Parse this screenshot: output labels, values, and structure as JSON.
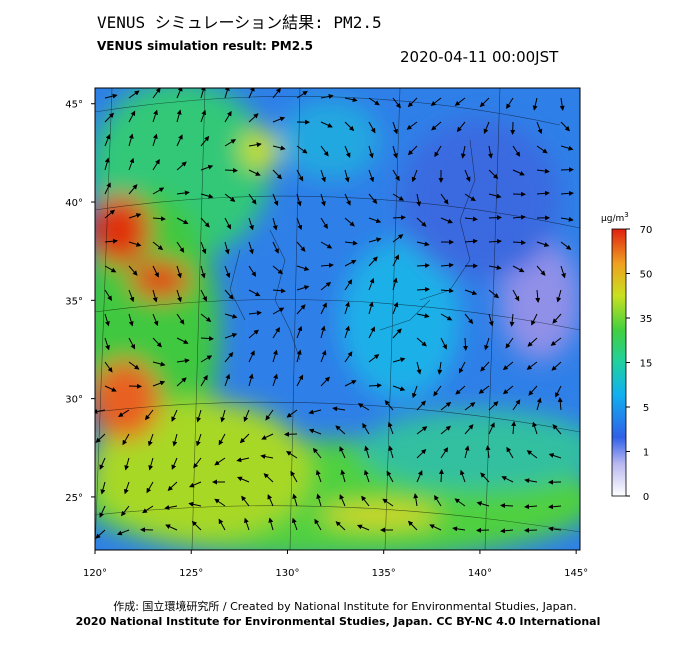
{
  "header": {
    "title_ja": "VENUS シミュレーション結果: PM2.5",
    "title_en": "VENUS simulation result: PM2.5",
    "timestamp": "2020-04-11 00:00JST"
  },
  "map": {
    "xlim": [
      120,
      145.2
    ],
    "ylim": [
      22.3,
      45.8
    ],
    "xticks": [
      {
        "value": 120,
        "label": "120°"
      },
      {
        "value": 125,
        "label": "125°"
      },
      {
        "value": 130,
        "label": "130°"
      },
      {
        "value": 135,
        "label": "135°"
      },
      {
        "value": 140,
        "label": "140°"
      },
      {
        "value": 145,
        "label": "145°"
      }
    ],
    "yticks": [
      {
        "value": 25,
        "label": "25°"
      },
      {
        "value": 30,
        "label": "30°"
      },
      {
        "value": 35,
        "label": "35°"
      },
      {
        "value": 40,
        "label": "40°"
      },
      {
        "value": 45,
        "label": "45°"
      }
    ]
  },
  "colorbar": {
    "unit": "µg/m",
    "unit_sup": "3",
    "ticks": [
      0,
      1,
      5,
      15,
      35,
      50,
      70
    ]
  },
  "footer": {
    "credit": "作成: 国立環境研究所 / Created by National Institute for Environmental Studies, Japan.",
    "copyright": "2020 National Institute for Environmental Studies, Japan. CC BY-NC 4.0 International"
  }
}
